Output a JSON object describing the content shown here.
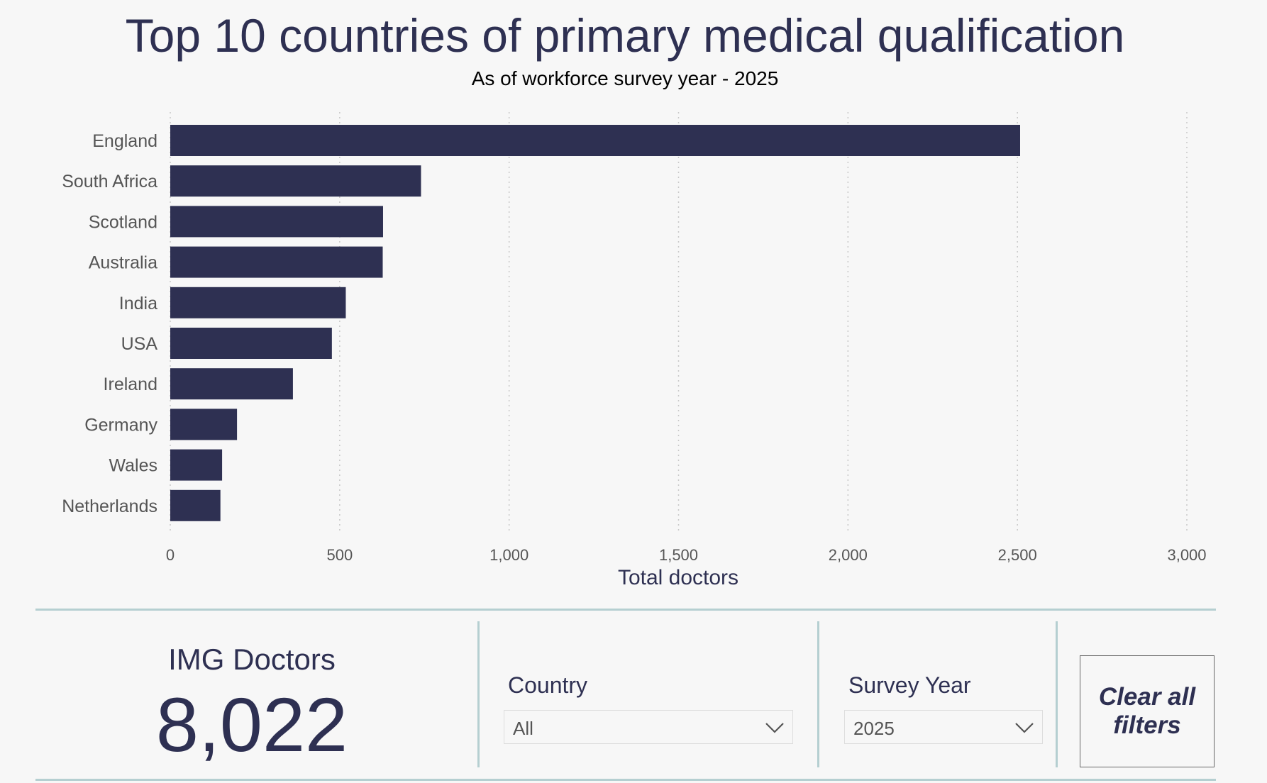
{
  "chart_data": {
    "type": "bar",
    "orientation": "horizontal",
    "title": "Top 10 countries of primary medical qualification",
    "subtitle": "As of workforce survey year - 2025",
    "categories": [
      "England",
      "South Africa",
      "Scotland",
      "Australia",
      "India",
      "USA",
      "Ireland",
      "Germany",
      "Wales",
      "Netherlands"
    ],
    "values": [
      2508,
      740,
      628,
      627,
      518,
      477,
      362,
      197,
      153,
      148
    ],
    "xlabel": "Total doctors",
    "ylabel": "",
    "xlim": [
      0,
      3000
    ],
    "ticks": [
      "0",
      "500",
      "1,000",
      "1,500",
      "2,000",
      "2,500",
      "3,000"
    ],
    "grid": "vertical-dotted",
    "bar_color": "#2e3052"
  },
  "kpi": {
    "label": "IMG Doctors",
    "value": "8,022"
  },
  "filters": {
    "country": {
      "label": "Country",
      "value": "All"
    },
    "survey_year": {
      "label": "Survey Year",
      "value": "2025"
    }
  },
  "clear_button": {
    "label": "Clear all filters"
  },
  "colors": {
    "primary": "#2e3052",
    "separator": "#b5cfd1",
    "background": "#f7f7f7"
  }
}
